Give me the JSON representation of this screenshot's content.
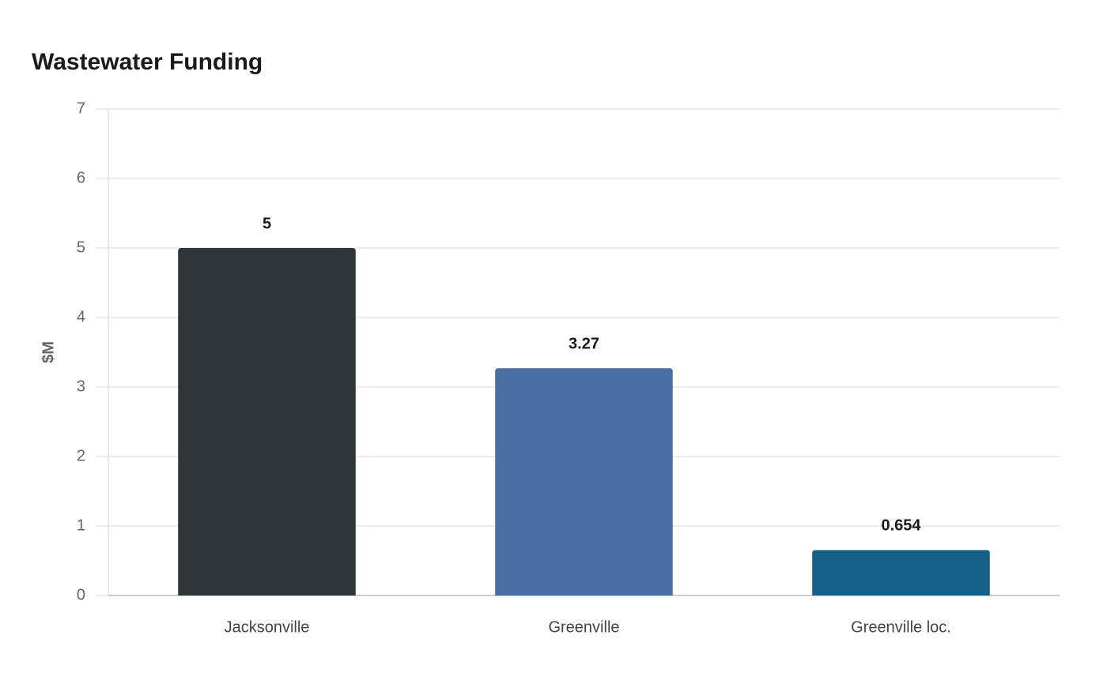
{
  "chart_data": {
    "type": "bar",
    "title": "Wastewater Funding",
    "y_label": "$M",
    "categories": [
      "Jacksonville",
      "Greenville",
      "Greenville loc."
    ],
    "values": [
      5,
      3.27,
      0.654
    ],
    "colors": [
      "#2e3538",
      "#4a6fa5",
      "#166088"
    ],
    "ylim": [
      0,
      7
    ],
    "yticks": [
      0,
      1,
      2,
      3,
      4,
      5,
      6,
      7
    ],
    "grid": true
  }
}
